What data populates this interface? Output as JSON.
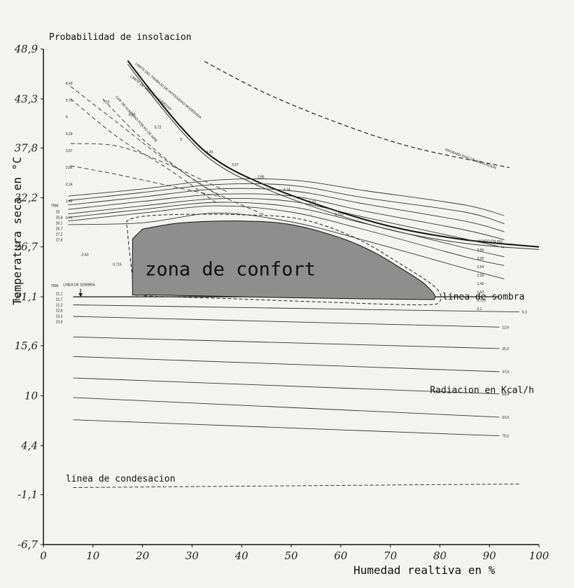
{
  "chart_data": {
    "type": "line",
    "title": "Probabilidad de insolacion",
    "xlabel": "Humedad realtiva en %",
    "ylabel": "Temperatura seca en °C",
    "xlim": [
      0,
      100
    ],
    "ylim": [
      -6.7,
      48.9
    ],
    "x_ticks": [
      "0",
      "10",
      "20",
      "30",
      "40",
      "50",
      "60",
      "70",
      "80",
      "90",
      "100"
    ],
    "y_ticks": [
      "-6,7",
      "-1,1",
      "4,4",
      "10",
      "15,6",
      "21,1",
      "26,7",
      "32,2",
      "37,8",
      "43,3",
      "48,9"
    ],
    "zone_label": "zona de confort",
    "annotations": {
      "shade_line": "linea de sombra",
      "radiation": "Radiacion en Kcal/h",
      "condensation": "linea de condesacion",
      "shade_line_small": "LINEA DE SOMBRA",
      "wind_small": "VIENTO EN m/s",
      "insolation_small": "PROBABILIDAD DE INSOLACION",
      "work_limit_small": "LIMITE DEL TRABAJO DE INTENSIDAD MODERADA",
      "wind_limit_small": "LIMITE DE VIENTO A HUMEDAD",
      "water_small": "CMF DE HUMEDAD POR kG DE AIRE",
      "trm_top": "TRM",
      "trm_bottom": "TRM"
    },
    "curves": {
      "insolation": [
        [
          32.5,
          47.5
        ],
        [
          45,
          43.9
        ],
        [
          60,
          40.5
        ],
        [
          75,
          37.8
        ],
        [
          94,
          35.6
        ]
      ],
      "work_limit": [
        [
          17,
          47.6
        ],
        [
          22,
          44
        ],
        [
          28,
          40
        ],
        [
          34,
          36.8
        ],
        [
          42,
          34.3
        ],
        [
          55,
          31.5
        ],
        [
          70,
          29
        ],
        [
          85,
          27.5
        ],
        [
          100,
          26.7
        ]
      ],
      "wind_limit": [
        [
          17,
          47.2
        ],
        [
          22,
          43.6
        ],
        [
          28,
          39.6
        ],
        [
          34,
          36.4
        ],
        [
          42,
          33.9
        ],
        [
          55,
          31.1
        ],
        [
          70,
          28.6
        ],
        [
          85,
          27.1
        ],
        [
          100,
          26.4
        ]
      ],
      "condensation": [
        [
          6,
          -0.3
        ],
        [
          96,
          0.1
        ]
      ]
    },
    "series": [
      {
        "name": "0,1",
        "values": [
          [
            5,
            29.2
          ],
          [
            20,
            29.4
          ],
          [
            35,
            30.5
          ],
          [
            50,
            29.5
          ],
          [
            65,
            27.4
          ],
          [
            85,
            24.3
          ],
          [
            93,
            23.1
          ]
        ]
      },
      {
        "name": "0,710",
        "values": [
          [
            5,
            29.6
          ],
          [
            20,
            30.5
          ],
          [
            35,
            31.3
          ],
          [
            50,
            30.6
          ],
          [
            65,
            28.6
          ],
          [
            85,
            25.6
          ],
          [
            93,
            24.6
          ]
        ]
      },
      {
        "name": "1,02",
        "values": [
          [
            5,
            30
          ],
          [
            20,
            30.9
          ],
          [
            35,
            31.7
          ],
          [
            50,
            31.2
          ],
          [
            65,
            29.3
          ],
          [
            85,
            26.6
          ],
          [
            93,
            25.6
          ]
        ]
      },
      {
        "name": "1,42",
        "values": [
          [
            5,
            30.4
          ],
          [
            20,
            31.3
          ],
          [
            35,
            32.1
          ],
          [
            50,
            31.8
          ],
          [
            65,
            30
          ],
          [
            85,
            27.6
          ],
          [
            93,
            26.6
          ]
        ]
      },
      {
        "name": "2,03",
        "values": [
          [
            5,
            30.9
          ],
          [
            20,
            31.8
          ],
          [
            35,
            32.6
          ],
          [
            50,
            32.4
          ],
          [
            65,
            30.7
          ],
          [
            85,
            28.6
          ],
          [
            93,
            27.5
          ]
        ]
      },
      {
        "name": "2,54",
        "values": [
          [
            5,
            31.4
          ],
          [
            20,
            32.3
          ],
          [
            35,
            33.2
          ],
          [
            50,
            33
          ],
          [
            65,
            31.5
          ],
          [
            85,
            29.6
          ],
          [
            93,
            28.4
          ]
        ]
      },
      {
        "name": "3,05",
        "values": [
          [
            5,
            31.9
          ],
          [
            20,
            32.8
          ],
          [
            35,
            33.7
          ],
          [
            50,
            33.6
          ],
          [
            65,
            32.2
          ],
          [
            85,
            30.6
          ],
          [
            93,
            29.3
          ]
        ]
      },
      {
        "name": "3,56",
        "values": [
          [
            5,
            32.4
          ],
          [
            20,
            33.2
          ],
          [
            35,
            34.2
          ],
          [
            50,
            34.2
          ],
          [
            65,
            33
          ],
          [
            85,
            31.4
          ],
          [
            93,
            30.2
          ]
        ]
      }
    ],
    "radiation_lines": [
      {
        "label": "6,3",
        "values": [
          [
            6,
            20.2
          ],
          [
            96,
            19.4
          ]
        ]
      },
      {
        "label": "12,6",
        "values": [
          [
            6,
            18.9
          ],
          [
            92,
            17.7
          ]
        ]
      },
      {
        "label": "25,2",
        "values": [
          [
            6,
            16.6
          ],
          [
            92,
            15.3
          ]
        ]
      },
      {
        "label": "37,8",
        "values": [
          [
            6,
            14.4
          ],
          [
            92,
            12.7
          ]
        ]
      },
      {
        "label": "50,4",
        "values": [
          [
            6,
            12
          ],
          [
            92,
            10.2
          ]
        ]
      },
      {
        "label": "63,0",
        "values": [
          [
            6,
            9.8
          ],
          [
            92,
            7.6
          ]
        ]
      },
      {
        "label": "75,6",
        "values": [
          [
            6,
            7.3
          ],
          [
            92,
            5.5
          ]
        ]
      }
    ],
    "humidity_lines": [
      {
        "label": "8,43",
        "values": [
          [
            5.5,
            44.7
          ],
          [
            15,
            40.6
          ],
          [
            25,
            36.3
          ],
          [
            36,
            32.2
          ]
        ]
      },
      {
        "label": "7,15",
        "values": [
          [
            12,
            43.3
          ],
          [
            20,
            38.8
          ],
          [
            32,
            33.6
          ],
          [
            45,
            30.2
          ]
        ]
      },
      {
        "label": "5,72",
        "values": [
          [
            5.5,
            43.3
          ],
          [
            15,
            39
          ],
          [
            25,
            35.5
          ],
          [
            35,
            31.6
          ]
        ]
      },
      {
        "label": "4,29",
        "values": [
          [
            5.5,
            38.3
          ],
          [
            15,
            38
          ],
          [
            25,
            36
          ],
          [
            37,
            32.9
          ]
        ]
      },
      {
        "label": "2,14",
        "values": [
          [
            5.5,
            35.8
          ],
          [
            15,
            34.8
          ],
          [
            25,
            33.6
          ],
          [
            35,
            32.4
          ]
        ]
      }
    ],
    "small_tick_values": {
      "trm_top": [
        "25",
        "25,8",
        "26,1",
        "26,7",
        "27,2",
        "27,8"
      ],
      "trm_bottom": [
        "21,1",
        "21,7",
        "22,2",
        "22,8",
        "23,3",
        "23,9"
      ],
      "wind": [
        "3,56",
        "3,05",
        "2,54",
        "2,03",
        "1,42",
        "1,02",
        "0,710",
        "0,1"
      ],
      "water_left": [
        "8,43",
        "5,72",
        "5",
        "4,29",
        "3,57",
        "2,86",
        "2,14",
        "1,42",
        "0,71"
      ],
      "water_diag": [
        "7,15",
        "6,43",
        "5,72",
        "5",
        "4,29",
        "3,57",
        "2,86",
        "2,14",
        "1,43",
        "0,710"
      ],
      "zone_bottom": [
        "-3,43",
        "0,715"
      ]
    },
    "comfort_zone": [
      [
        18,
        27.6
      ],
      [
        18,
        22
      ],
      [
        18.5,
        21.3
      ],
      [
        23,
        21.3
      ],
      [
        50,
        21
      ],
      [
        75,
        20.8
      ],
      [
        79,
        21
      ],
      [
        77,
        22.5
      ],
      [
        73,
        24
      ],
      [
        67,
        26
      ],
      [
        60,
        27.7
      ],
      [
        50,
        29.2
      ],
      [
        40,
        29.6
      ],
      [
        28,
        29.4
      ],
      [
        20,
        28.7
      ]
    ],
    "comfort_zone_outline": [
      [
        18,
        23.2
      ],
      [
        17,
        28.3
      ],
      [
        17.5,
        29.8
      ],
      [
        25,
        30.3
      ],
      [
        40,
        30.3
      ],
      [
        52,
        29.8
      ],
      [
        63,
        27.7
      ],
      [
        72,
        24.8
      ],
      [
        79,
        22.2
      ],
      [
        80,
        20.6
      ],
      [
        76,
        20.2
      ],
      [
        57,
        20.5
      ],
      [
        37,
        20.9
      ],
      [
        20,
        21.2
      ]
    ],
    "shade_line_x_range": [
      6,
      92
    ],
    "shade_line_y": 21.1,
    "grid": false,
    "legend": "none",
    "colors": {
      "ink": "#111111",
      "zone_fill": "#8e8e8e",
      "paper": "#f3f3f1"
    }
  }
}
